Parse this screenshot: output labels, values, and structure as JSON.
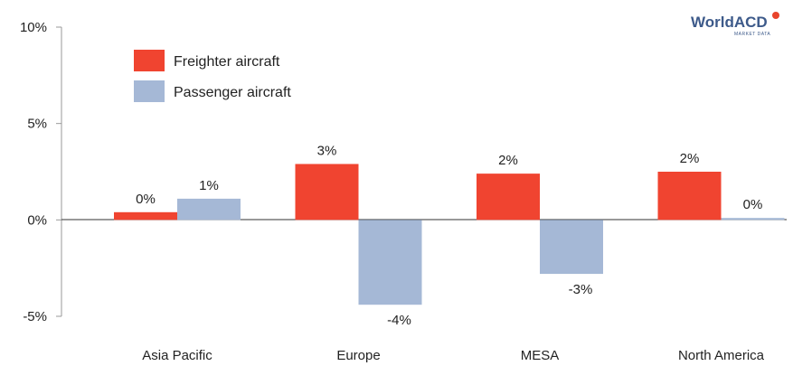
{
  "brand": {
    "logo_text": "WorldACD",
    "logo_subtext": "MARKET DATA",
    "logo_color": "#3d5a8a",
    "logo_dot_color": "#e8442c"
  },
  "chart_data": {
    "type": "bar",
    "title": "",
    "xlabel": "",
    "ylabel": "",
    "categories": [
      "Asia Pacific",
      "Europe",
      "MESA",
      "North America"
    ],
    "series": [
      {
        "name": "Freighter aircraft",
        "color": "#f04430",
        "values": [
          0.4,
          2.9,
          2.4,
          2.5
        ],
        "labels": [
          "0%",
          "3%",
          "2%",
          "2%"
        ]
      },
      {
        "name": "Passenger aircraft",
        "color": "#a5b8d6",
        "values": [
          1.1,
          -4.4,
          -2.8,
          0.1
        ],
        "labels": [
          "1%",
          "-4%",
          "-3%",
          "0%"
        ]
      }
    ],
    "ylim": [
      -5,
      10
    ],
    "yticks": [
      {
        "value": 10,
        "label": "10%"
      },
      {
        "value": 5,
        "label": "5%"
      },
      {
        "value": 0,
        "label": "0%"
      },
      {
        "value": -5,
        "label": "-5%"
      }
    ],
    "grid": false,
    "legend_position": "top-left"
  }
}
